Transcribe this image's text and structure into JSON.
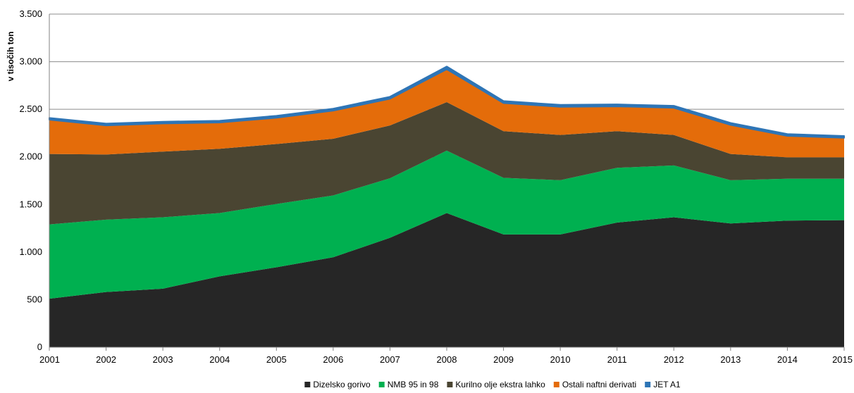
{
  "chart_data": {
    "type": "area",
    "title": "",
    "xlabel": "",
    "ylabel": "v tisočih ton",
    "ylim": [
      0,
      3500
    ],
    "yticks": [
      0,
      500,
      1000,
      1500,
      2000,
      2500,
      3000,
      3500
    ],
    "ytick_labels": [
      "0",
      "500",
      "1.000",
      "1.500",
      "2.000",
      "2.500",
      "3.000",
      "3.500"
    ],
    "grid": true,
    "legend_position": "bottom",
    "stacked": true,
    "categories": [
      "2001",
      "2002",
      "2003",
      "2004",
      "2005",
      "2006",
      "2007",
      "2008",
      "2009",
      "2010",
      "2011",
      "2012",
      "2013",
      "2014",
      "2015"
    ],
    "series": [
      {
        "name": "Dizelsko gorivo",
        "color": "#262626",
        "values": [
          510,
          580,
          615,
          745,
          840,
          945,
          1150,
          1410,
          1185,
          1185,
          1310,
          1365,
          1300,
          1330,
          1335
        ]
      },
      {
        "name": "NMB 95 in 98",
        "color": "#00b050",
        "values": [
          780,
          760,
          750,
          665,
          665,
          650,
          625,
          655,
          595,
          570,
          575,
          545,
          455,
          440,
          435
        ]
      },
      {
        "name": "Kurilno olje ekstra lahko",
        "color": "#4a4532",
        "values": [
          740,
          685,
          690,
          675,
          630,
          595,
          555,
          510,
          490,
          475,
          385,
          320,
          275,
          225,
          225
        ]
      },
      {
        "name": "Ostali naftni derivati",
        "color": "#e46c0a",
        "values": [
          360,
          305,
          295,
          275,
          275,
          295,
          280,
          345,
          295,
          295,
          260,
          285,
          305,
          225,
          205
        ]
      },
      {
        "name": "JET A1",
        "color": "#2e75b6",
        "values": [
          20,
          20,
          20,
          20,
          22,
          22,
          22,
          30,
          22,
          22,
          22,
          22,
          22,
          20,
          20
        ]
      }
    ]
  }
}
